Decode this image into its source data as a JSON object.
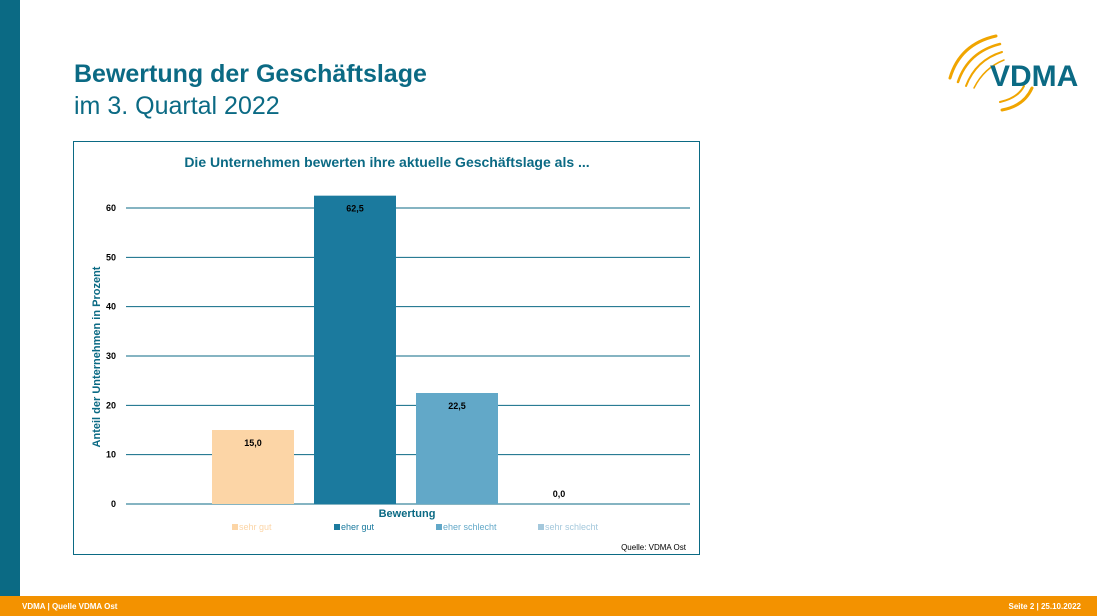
{
  "slide": {
    "title": "Bewertung der Geschäftslage",
    "subtitle": "im 3. Quartal 2022"
  },
  "logo": {
    "text": "VDMA",
    "brand_color": "#0b6a84",
    "accent_color": "#f0a500"
  },
  "footer": {
    "left": "VDMA | Quelle VDMA Ost",
    "right": "Seite 2 | 25.10.2022",
    "color": "#f39200"
  },
  "chart_data": {
    "type": "bar",
    "title": "Die Unternehmen bewerten ihre aktuelle Geschäftslage als ...",
    "xlabel": "Bewertung",
    "ylabel": "Anteil der Unternehmen in Prozent",
    "ylim": [
      0,
      60
    ],
    "yticks": [
      0,
      10,
      20,
      30,
      40,
      50,
      60
    ],
    "grid": true,
    "legend_position": "bottom",
    "source": "Quelle: VDMA Ost",
    "series": [
      {
        "name": "sehr gut",
        "value": 15.0,
        "label": "15,0",
        "color": "#fcd5a6"
      },
      {
        "name": "eher gut",
        "value": 62.5,
        "label": "62,5",
        "color": "#1b7a9e"
      },
      {
        "name": "eher schlecht",
        "value": 22.5,
        "label": "22,5",
        "color": "#62a8c8"
      },
      {
        "name": "sehr schlecht",
        "value": 0.0,
        "label": "0,0",
        "color": "#a4c8dc"
      }
    ]
  }
}
